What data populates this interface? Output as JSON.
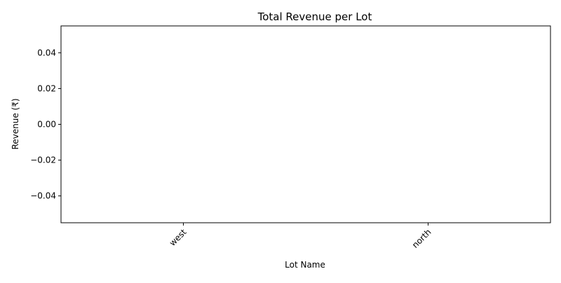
{
  "chart_data": {
    "type": "bar",
    "title": "Total Revenue per Lot",
    "xlabel": "Lot Name",
    "ylabel": "Revenue (₹)",
    "categories": [
      "west",
      "north"
    ],
    "values": [
      0,
      0
    ],
    "ylim": [
      -0.055,
      0.055
    ],
    "yticks": [
      -0.04,
      -0.02,
      0.0,
      0.02,
      0.04
    ],
    "ytick_labels": [
      "−0.04",
      "−0.02",
      "0.00",
      "0.02",
      "0.04"
    ],
    "xtick_rotation_deg": 45,
    "grid": false,
    "legend": "none",
    "colors": {
      "axes": "#000000",
      "bar": "#1f77b4",
      "background": "#ffffff"
    }
  }
}
